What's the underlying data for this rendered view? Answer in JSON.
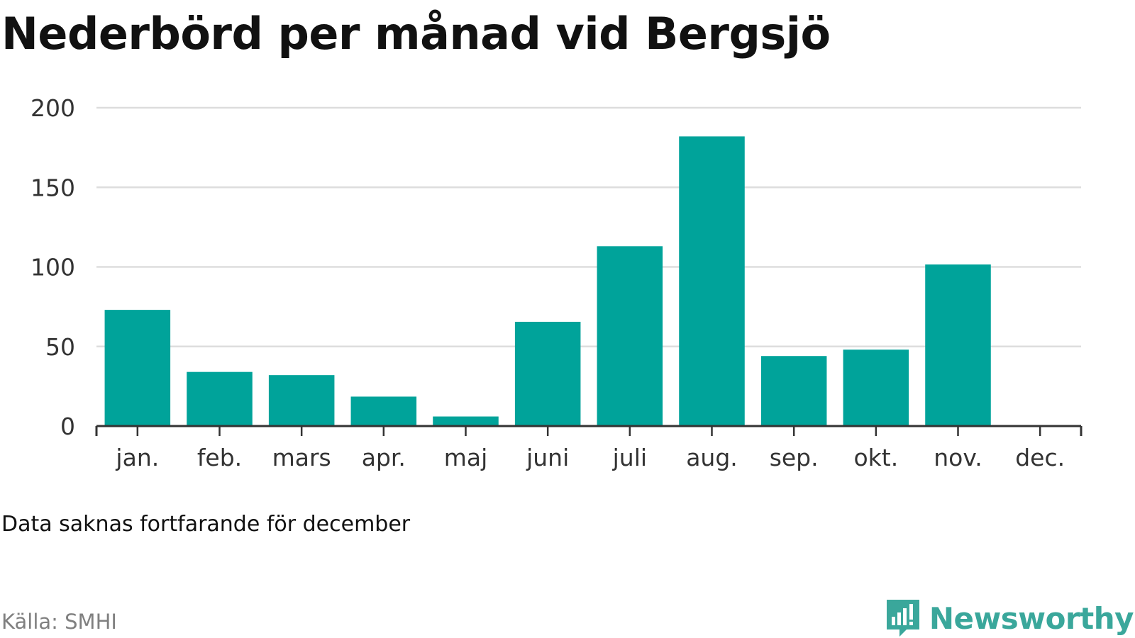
{
  "title": "Nederbörd per månad vid Bergsjö",
  "note": "Data saknas fortfarande för december",
  "source": "Källa: SMHI",
  "brand": {
    "name": "Newsworthy",
    "icon": "newsworthy-logo-icon",
    "color": "#3aa79b"
  },
  "colors": {
    "bar": "#00a39a",
    "grid": "#dddddd",
    "axis": "#333333",
    "text": "#333333"
  },
  "chart_data": {
    "type": "bar",
    "categories": [
      "jan.",
      "feb.",
      "mars",
      "apr.",
      "maj",
      "juni",
      "juli",
      "aug.",
      "sep.",
      "okt.",
      "nov.",
      "dec."
    ],
    "values": [
      73,
      34,
      32,
      18.5,
      6,
      65.5,
      113,
      182,
      44,
      48,
      101.5,
      null
    ],
    "ylim": [
      0,
      200
    ],
    "yticks": [
      0,
      50,
      100,
      150,
      200
    ],
    "grid": true,
    "xlabel": "",
    "ylabel": ""
  }
}
